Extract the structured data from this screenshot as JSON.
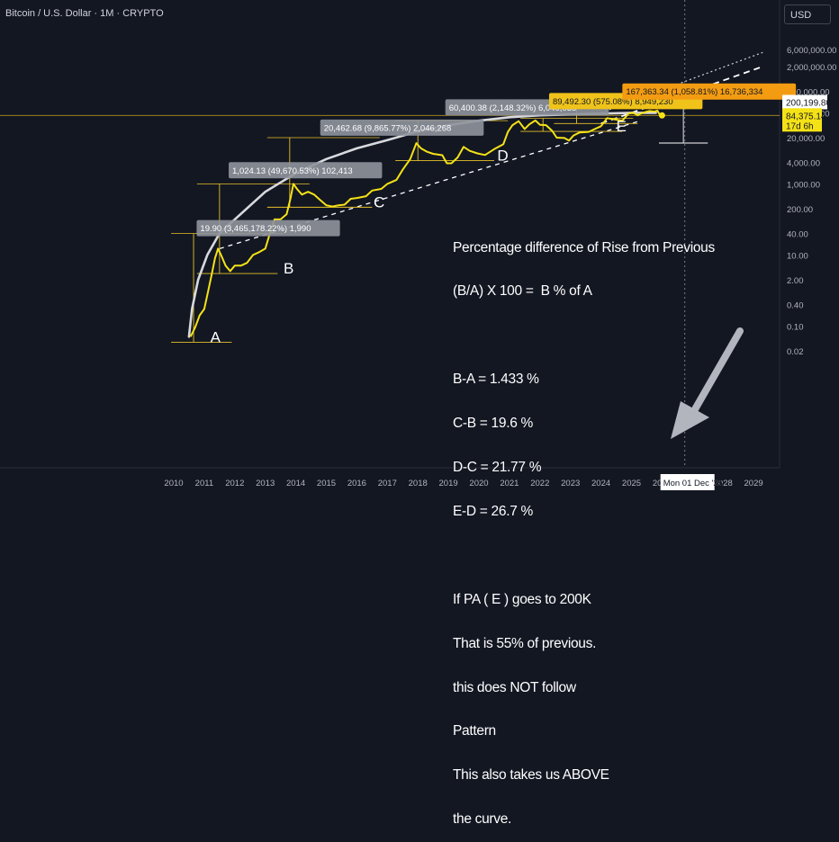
{
  "header": {
    "title": "Bitcoin / U.S. Dollar · 1M · CRYPTO",
    "currency": "USD"
  },
  "chart_data": {
    "type": "line",
    "series": [
      {
        "points": [
          [
            2010.55,
            0.05
          ],
          [
            2010.7,
            0.09
          ],
          [
            2010.85,
            0.2
          ],
          [
            2011.0,
            0.3
          ],
          [
            2011.12,
            0.9
          ],
          [
            2011.25,
            3
          ],
          [
            2011.35,
            8
          ],
          [
            2011.45,
            15
          ],
          [
            2011.55,
            10
          ],
          [
            2011.7,
            5
          ],
          [
            2011.85,
            3.5
          ],
          [
            2012.0,
            5
          ],
          [
            2012.2,
            5
          ],
          [
            2012.4,
            6
          ],
          [
            2012.6,
            10
          ],
          [
            2012.8,
            12
          ],
          [
            2013.0,
            15
          ],
          [
            2013.15,
            40
          ],
          [
            2013.3,
            100
          ],
          [
            2013.5,
            100
          ],
          [
            2013.7,
            140
          ],
          [
            2013.83,
            400
          ],
          [
            2013.92,
            1000
          ],
          [
            2014.05,
            700
          ],
          [
            2014.2,
            500
          ],
          [
            2014.4,
            600
          ],
          [
            2014.6,
            500
          ],
          [
            2014.8,
            350
          ],
          [
            2015.0,
            250
          ],
          [
            2015.2,
            230
          ],
          [
            2015.4,
            250
          ],
          [
            2015.6,
            260
          ],
          [
            2015.8,
            380
          ],
          [
            2016.0,
            400
          ],
          [
            2016.3,
            450
          ],
          [
            2016.5,
            650
          ],
          [
            2016.8,
            720
          ],
          [
            2017.0,
            1000
          ],
          [
            2017.3,
            1300
          ],
          [
            2017.5,
            2500
          ],
          [
            2017.75,
            5000
          ],
          [
            2017.95,
            14000
          ],
          [
            2018.1,
            10000
          ],
          [
            2018.3,
            8000
          ],
          [
            2018.5,
            7000
          ],
          [
            2018.8,
            6400
          ],
          [
            2018.95,
            3800
          ],
          [
            2019.1,
            3800
          ],
          [
            2019.3,
            5500
          ],
          [
            2019.5,
            11000
          ],
          [
            2019.7,
            8500
          ],
          [
            2019.95,
            7200
          ],
          [
            2020.2,
            6500
          ],
          [
            2020.5,
            9500
          ],
          [
            2020.8,
            13000
          ],
          [
            2020.95,
            29000
          ],
          [
            2021.1,
            45000
          ],
          [
            2021.3,
            58000
          ],
          [
            2021.5,
            35000
          ],
          [
            2021.65,
            47000
          ],
          [
            2021.85,
            61000
          ],
          [
            2022.0,
            46000
          ],
          [
            2022.2,
            45000
          ],
          [
            2022.4,
            31000
          ],
          [
            2022.55,
            20000
          ],
          [
            2022.8,
            19500
          ],
          [
            2022.95,
            16500
          ],
          [
            2023.1,
            23000
          ],
          [
            2023.3,
            28000
          ],
          [
            2023.6,
            29000
          ],
          [
            2023.8,
            35000
          ],
          [
            2024.0,
            42000
          ],
          [
            2024.2,
            71000
          ],
          [
            2024.5,
            64000
          ],
          [
            2024.7,
            60000
          ],
          [
            2024.9,
            95000
          ],
          [
            2025.05,
            102000
          ],
          [
            2025.2,
            85000
          ],
          [
            2025.3,
            95000
          ],
          [
            2025.45,
            105000
          ],
          [
            2025.6,
            112000
          ],
          [
            2025.75,
            108000
          ],
          [
            2025.85,
            115000
          ],
          [
            2025.92,
            90000
          ],
          [
            2026.0,
            84375
          ]
        ]
      }
    ],
    "curve": [
      [
        2010.5,
        0.05
      ],
      [
        2010.6,
        0.3
      ],
      [
        2010.8,
        2
      ],
      [
        2011.1,
        10
      ],
      [
        2011.5,
        40
      ],
      [
        2012.0,
        100
      ],
      [
        2013.0,
        600
      ],
      [
        2014.0,
        2000
      ],
      [
        2015.0,
        5000
      ],
      [
        2016.0,
        10000
      ],
      [
        2017.0,
        17000
      ],
      [
        2018.0,
        30000
      ],
      [
        2019.0,
        45000
      ],
      [
        2020.0,
        60000
      ],
      [
        2021.0,
        75000
      ],
      [
        2022.0,
        85000
      ],
      [
        2023.0,
        90000
      ],
      [
        2024.0,
        95000
      ],
      [
        2025.0,
        100000
      ],
      [
        2025.8,
        100000
      ]
    ],
    "support_line": [
      [
        2011.5,
        15
      ],
      [
        2025.3,
        60000
      ]
    ],
    "projection_line": [
      [
        2024.0,
        50000
      ],
      [
        2029.3,
        2000000
      ]
    ],
    "upper_line": [
      [
        2024.0,
        100000
      ],
      [
        2029.3,
        5000000
      ]
    ],
    "x_ticks": [
      "2010",
      "2011",
      "2012",
      "2013",
      "2014",
      "2015",
      "2016",
      "2017",
      "2018",
      "2019",
      "2020",
      "2021",
      "2022",
      "2023",
      "2024",
      "2025",
      "2026",
      "2027",
      "2028",
      "2029"
    ],
    "y_ticks": [
      {
        "value": 6000000,
        "label": "6,000,000.00"
      },
      {
        "value": 2000000,
        "label": "2,000,000.00"
      },
      {
        "value": 400000,
        "label": "400,000.00"
      },
      {
        "value": 100000,
        "label": "100,000.00"
      },
      {
        "value": 20000,
        "label": "20,000.00"
      },
      {
        "value": 4000,
        "label": "4,000.00"
      },
      {
        "value": 1000,
        "label": "1,000.00"
      },
      {
        "value": 200,
        "label": "200.00"
      },
      {
        "value": 40,
        "label": "40.00"
      },
      {
        "value": 10,
        "label": "10.00"
      },
      {
        "value": 2,
        "label": "2.00"
      },
      {
        "value": 0.4,
        "label": "0.40"
      },
      {
        "value": 0.1,
        "label": "0.10"
      },
      {
        "value": 0.02,
        "label": "0.02"
      }
    ],
    "measure_labels": [
      {
        "text": "19.90 (3,465,178.22%) 1,990",
        "x": 2010.75,
        "y": 40,
        "style": "gray"
      },
      {
        "text": "1,024.13 (49,670.53%) 102,413",
        "x": 2011.8,
        "y": 1700,
        "style": "gray"
      },
      {
        "text": "20,462.68 (9,865.77%) 2,046,268",
        "x": 2014.8,
        "y": 27000,
        "style": "gray"
      },
      {
        "text": "60,400.38 (2,148.32%) 6,040,038",
        "x": 2018.9,
        "y": 100000,
        "style": "gray"
      },
      {
        "text": "89,492.30 (575.08%) 8,949,230",
        "x": 2022.3,
        "y": 150000,
        "style": "yellow"
      },
      {
        "text": "167,363.34 (1,058.81%) 16,736,334",
        "x": 2024.7,
        "y": 280000,
        "style": "orange"
      }
    ],
    "markers": [
      {
        "text": "A",
        "x": 2011.2,
        "y": 0.035
      },
      {
        "text": "B",
        "x": 2013.6,
        "y": 3.0
      },
      {
        "text": "C",
        "x": 2016.55,
        "y": 220
      },
      {
        "text": "D",
        "x": 2020.6,
        "y": 4500
      },
      {
        "text": "E",
        "x": 2024.5,
        "y": 30000
      }
    ],
    "price_labels": {
      "upper": "200,199.80",
      "current": "84,375.14",
      "countdown": "17d 6h",
      "date": "Mon 01 Dec '25"
    }
  },
  "note": {
    "lines": [
      "Percentage difference of Rise from Previous",
      "(B/A) X 100 =  B % of A",
      "",
      "B-A = 1.433 %",
      "C-B = 19.6 %",
      "D-C = 21.77 %",
      "E-D = 26.7 %",
      "",
      "If PA ( E ) goes to 200K",
      "That is 55% of previous.",
      "this does NOT follow",
      "Pattern",
      "This also takes us ABOVE",
      "the curve."
    ]
  },
  "colors": {
    "bg": "#131722",
    "price": "#f5e216",
    "curve": "#d1d4dc",
    "grid_text": "#b2b5be",
    "box_gray": "#8f939c",
    "box_yellow": "#f0c31a",
    "box_orange": "#f39c12"
  }
}
